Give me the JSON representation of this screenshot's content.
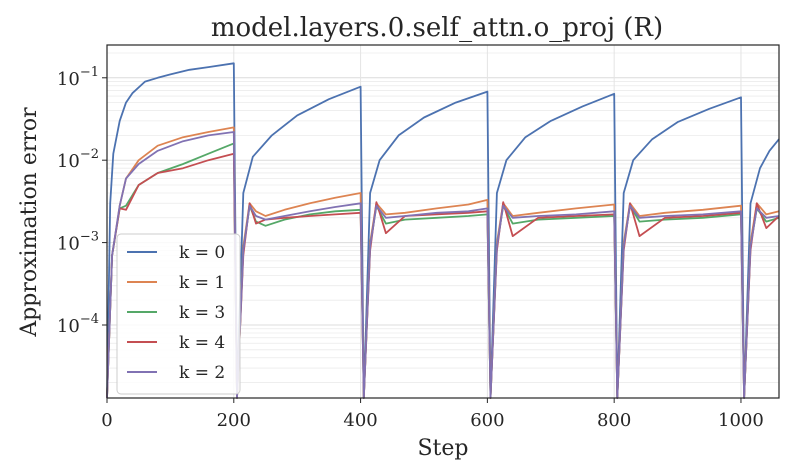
{
  "chart_data": {
    "type": "line",
    "title": "model.layers.0.self_attn.o_proj (R)",
    "xlabel": "Step",
    "ylabel": "Approximation error",
    "yscale": "log",
    "xlim": [
      0,
      1060
    ],
    "ylim": [
      1.3e-05,
      0.25
    ],
    "xticks": [
      0,
      200,
      400,
      600,
      800,
      1000
    ],
    "xtick_labels": [
      "0",
      "200",
      "400",
      "600",
      "800",
      "1000"
    ],
    "yticks": [
      0.0001,
      0.001,
      0.01,
      0.1
    ],
    "ytick_labels": [
      {
        "base": "10",
        "exp": "−4"
      },
      {
        "base": "10",
        "exp": "−3"
      },
      {
        "base": "10",
        "exp": "−2"
      },
      {
        "base": "10",
        "exp": "−1"
      }
    ],
    "grid": true,
    "legend_position": "lower-left",
    "reset_period": 200,
    "series": [
      {
        "name": "k = 0",
        "color": "#4c72b0",
        "x": [
          0,
          5,
          10,
          20,
          30,
          40,
          60,
          80,
          100,
          130,
          160,
          200,
          205,
          215,
          230,
          260,
          300,
          350,
          400,
          405,
          415,
          430,
          460,
          500,
          550,
          600,
          605,
          615,
          630,
          660,
          700,
          750,
          800,
          805,
          815,
          830,
          860,
          900,
          950,
          1000,
          1005,
          1015,
          1030,
          1045,
          1060
        ],
        "y": [
          1e-05,
          0.003,
          0.012,
          0.03,
          0.05,
          0.065,
          0.09,
          0.1,
          0.11,
          0.125,
          0.135,
          0.15,
          1e-05,
          0.004,
          0.011,
          0.02,
          0.035,
          0.055,
          0.078,
          1e-05,
          0.004,
          0.01,
          0.02,
          0.033,
          0.05,
          0.068,
          1e-05,
          0.004,
          0.01,
          0.019,
          0.03,
          0.045,
          0.064,
          1e-05,
          0.004,
          0.01,
          0.018,
          0.029,
          0.042,
          0.058,
          1e-05,
          0.003,
          0.008,
          0.013,
          0.018
        ]
      },
      {
        "name": "k = 1",
        "color": "#dd8452",
        "x": [
          0,
          8,
          20,
          30,
          50,
          80,
          120,
          160,
          200,
          205,
          215,
          225,
          235,
          250,
          280,
          320,
          360,
          400,
          405,
          415,
          425,
          440,
          470,
          520,
          570,
          600,
          605,
          615,
          625,
          640,
          680,
          740,
          800,
          805,
          815,
          825,
          840,
          880,
          940,
          1000,
          1005,
          1015,
          1025,
          1040,
          1060
        ],
        "y": [
          1e-05,
          0.0007,
          0.0028,
          0.006,
          0.01,
          0.015,
          0.019,
          0.022,
          0.025,
          1e-05,
          0.0009,
          0.003,
          0.0024,
          0.0021,
          0.0025,
          0.003,
          0.0035,
          0.004,
          1e-05,
          0.001,
          0.003,
          0.0022,
          0.0023,
          0.0026,
          0.0029,
          0.0033,
          1e-05,
          0.001,
          0.003,
          0.0021,
          0.0023,
          0.0026,
          0.0029,
          1e-05,
          0.001,
          0.003,
          0.0021,
          0.0023,
          0.0025,
          0.0028,
          1e-05,
          0.001,
          0.003,
          0.0022,
          0.0024
        ]
      },
      {
        "name": "k = 3",
        "color": "#55a868",
        "x": [
          0,
          8,
          20,
          30,
          50,
          80,
          120,
          160,
          200,
          205,
          215,
          225,
          235,
          250,
          280,
          320,
          360,
          400,
          405,
          415,
          425,
          440,
          470,
          520,
          570,
          600,
          605,
          615,
          625,
          640,
          680,
          740,
          800,
          805,
          815,
          825,
          840,
          880,
          940,
          1000,
          1005,
          1015,
          1025,
          1040,
          1060
        ],
        "y": [
          1e-05,
          0.0007,
          0.0026,
          0.0028,
          0.005,
          0.007,
          0.009,
          0.012,
          0.016,
          1e-05,
          0.0008,
          0.0028,
          0.0018,
          0.0016,
          0.0019,
          0.0022,
          0.0024,
          0.0025,
          1e-05,
          0.0009,
          0.0028,
          0.0017,
          0.0019,
          0.002,
          0.0021,
          0.0022,
          1e-05,
          0.0009,
          0.0028,
          0.0017,
          0.0019,
          0.002,
          0.0021,
          1e-05,
          0.0009,
          0.0028,
          0.0018,
          0.0019,
          0.002,
          0.0022,
          1e-05,
          0.0009,
          0.0026,
          0.0018,
          0.002
        ]
      },
      {
        "name": "k = 4",
        "color": "#c44e52",
        "x": [
          0,
          8,
          20,
          30,
          50,
          80,
          120,
          160,
          200,
          205,
          215,
          225,
          235,
          250,
          280,
          320,
          360,
          400,
          405,
          415,
          425,
          440,
          470,
          520,
          570,
          600,
          605,
          615,
          625,
          640,
          680,
          740,
          800,
          805,
          815,
          825,
          840,
          880,
          940,
          1000,
          1005,
          1015,
          1025,
          1040,
          1060
        ],
        "y": [
          1e-05,
          0.0007,
          0.0026,
          0.0025,
          0.005,
          0.007,
          0.008,
          0.01,
          0.012,
          1e-05,
          0.0007,
          0.003,
          0.0017,
          0.0019,
          0.002,
          0.0021,
          0.0022,
          0.0023,
          1e-05,
          0.0008,
          0.0031,
          0.0013,
          0.0021,
          0.0022,
          0.0023,
          0.0024,
          1e-05,
          0.0008,
          0.0031,
          0.0012,
          0.002,
          0.0021,
          0.0022,
          1e-05,
          0.0008,
          0.003,
          0.0012,
          0.002,
          0.0021,
          0.0023,
          1e-05,
          0.0008,
          0.003,
          0.0015,
          0.0021
        ]
      },
      {
        "name": "k = 2",
        "color": "#8172b3",
        "x": [
          0,
          8,
          20,
          30,
          50,
          80,
          120,
          160,
          200,
          205,
          215,
          225,
          235,
          250,
          280,
          320,
          360,
          400,
          405,
          415,
          425,
          440,
          470,
          520,
          570,
          600,
          605,
          615,
          625,
          640,
          680,
          740,
          800,
          805,
          815,
          825,
          840,
          880,
          940,
          1000,
          1005,
          1015,
          1025,
          1040,
          1060
        ],
        "y": [
          1e-05,
          0.0007,
          0.0028,
          0.006,
          0.009,
          0.013,
          0.017,
          0.02,
          0.022,
          1e-05,
          0.0008,
          0.0028,
          0.0021,
          0.0019,
          0.0021,
          0.0024,
          0.0027,
          0.003,
          1e-05,
          0.0009,
          0.0028,
          0.002,
          0.0021,
          0.0023,
          0.0024,
          0.0026,
          1e-05,
          0.0009,
          0.0028,
          0.002,
          0.0021,
          0.0022,
          0.0024,
          1e-05,
          0.0009,
          0.0028,
          0.002,
          0.0021,
          0.0022,
          0.0024,
          1e-05,
          0.0009,
          0.0026,
          0.002,
          0.0021
        ]
      }
    ]
  }
}
